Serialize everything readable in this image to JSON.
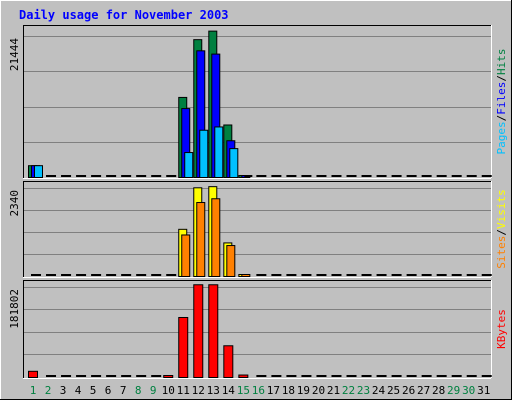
{
  "chart_data": {
    "type": "bar",
    "title": "Daily usage for November 2003",
    "x": [
      "1",
      "2",
      "3",
      "4",
      "5",
      "6",
      "7",
      "8",
      "9",
      "10",
      "11",
      "12",
      "13",
      "14",
      "15",
      "16",
      "17",
      "18",
      "19",
      "20",
      "21",
      "22",
      "23",
      "24",
      "25",
      "26",
      "27",
      "28",
      "29",
      "30",
      "31"
    ],
    "weekend_days": [
      "1",
      "2",
      "8",
      "9",
      "15",
      "16",
      "22",
      "23",
      "29",
      "30"
    ],
    "panels": [
      {
        "id": "hits",
        "ylabel_parts": [
          {
            "text": "Pages",
            "color": "#00c0ff"
          },
          {
            "text": "/",
            "color": "#000000"
          },
          {
            "text": "Files",
            "color": "#0000ff"
          },
          {
            "text": "/",
            "color": "#000000"
          },
          {
            "text": "Hits",
            "color": "#008040"
          }
        ],
        "max_label": "21444",
        "ymax": 21444,
        "series": [
          {
            "name": "Hits",
            "color": "#008040",
            "values": [
              1800,
              0,
              0,
              0,
              0,
              0,
              0,
              0,
              0,
              0,
              12200,
              21000,
              22300,
              8000,
              300,
              0,
              0,
              0,
              0,
              0,
              0,
              0,
              0,
              0,
              0,
              0,
              0,
              0,
              0,
              0,
              0
            ]
          },
          {
            "name": "Files",
            "color": "#0000ff",
            "values": [
              1800,
              0,
              0,
              0,
              0,
              0,
              0,
              0,
              0,
              0,
              10500,
              19300,
              18800,
              5600,
              300,
              0,
              0,
              0,
              0,
              0,
              0,
              0,
              0,
              0,
              0,
              0,
              0,
              0,
              0,
              0,
              0
            ]
          },
          {
            "name": "Pages",
            "color": "#00c0ff",
            "values": [
              1800,
              0,
              0,
              0,
              0,
              0,
              0,
              0,
              0,
              0,
              3800,
              7200,
              7700,
              4400,
              0,
              0,
              0,
              0,
              0,
              0,
              0,
              0,
              0,
              0,
              0,
              0,
              0,
              0,
              0,
              0,
              0
            ]
          }
        ]
      },
      {
        "id": "visits",
        "ylabel_parts": [
          {
            "text": "Sites",
            "color": "#ff8000"
          },
          {
            "text": "/",
            "color": "#000000"
          },
          {
            "text": "Visits",
            "color": "#ffff00"
          }
        ],
        "max_label": "2340",
        "ymax": 2340,
        "series": [
          {
            "name": "Visits",
            "color": "#ffff00",
            "values": [
              0,
              0,
              0,
              0,
              0,
              0,
              0,
              0,
              0,
              0,
              1250,
              2350,
              2380,
              890,
              50,
              0,
              0,
              0,
              0,
              0,
              0,
              0,
              0,
              0,
              0,
              0,
              0,
              0,
              0,
              0,
              0
            ]
          },
          {
            "name": "Sites",
            "color": "#ff8000",
            "values": [
              0,
              0,
              0,
              0,
              0,
              0,
              0,
              0,
              0,
              0,
              1100,
              1960,
              2060,
              820,
              30,
              0,
              0,
              0,
              0,
              0,
              0,
              0,
              0,
              0,
              0,
              0,
              0,
              0,
              0,
              0,
              0
            ]
          }
        ]
      },
      {
        "id": "kbytes",
        "ylabel_parts": [
          {
            "text": "KBytes",
            "color": "#ff0000"
          }
        ],
        "max_label": "181802",
        "ymax": 181802,
        "series": [
          {
            "name": "KBytes",
            "color": "#ff0000",
            "values": [
              12500,
              0,
              0,
              0,
              0,
              0,
              0,
              0,
              0,
              4000,
              121000,
              187000,
              187000,
              64000,
              5000,
              0,
              0,
              0,
              0,
              0,
              0,
              0,
              0,
              0,
              0,
              0,
              0,
              0,
              0,
              0,
              0
            ]
          }
        ]
      }
    ]
  },
  "colors": {
    "background": "#c0c0c0",
    "title": "#0000ff",
    "weekday_label": "#000000",
    "weekend_label": "#008040",
    "grid": "#808080",
    "empty_marker": "#000000"
  }
}
